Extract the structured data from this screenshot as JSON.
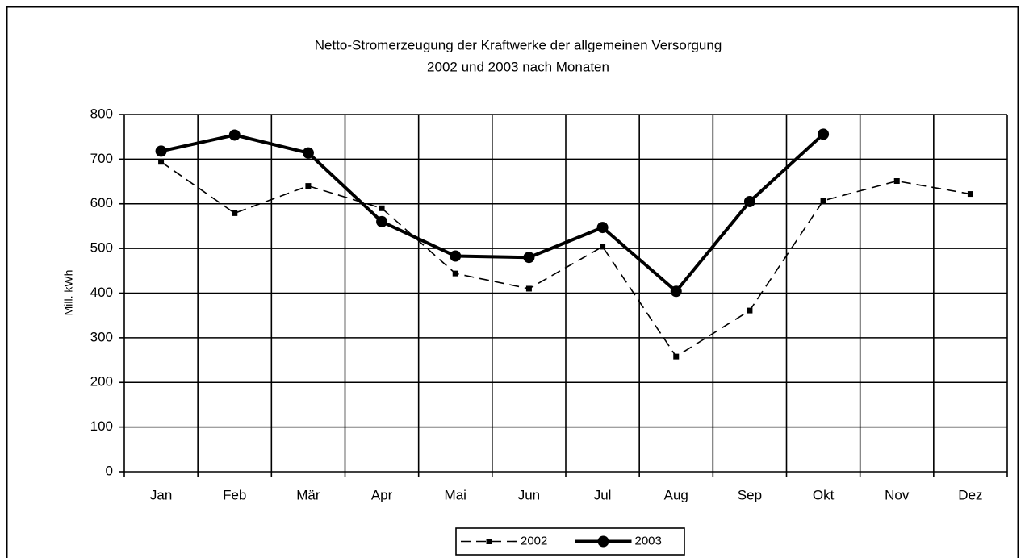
{
  "chart_data": {
    "type": "line",
    "title": [
      "Netto-Stromerzeugung der Kraftwerke der allgemeinen Versorgung",
      "2002 und 2003 nach Monaten"
    ],
    "y_label": "Mill. kWh",
    "categories": [
      "Jan",
      "Feb",
      "Mär",
      "Apr",
      "Mai",
      "Jun",
      "Jul",
      "Aug",
      "Sep",
      "Okt",
      "Nov",
      "Dez"
    ],
    "series": [
      {
        "name": "2002",
        "color": "#000000",
        "line_style": "dashed",
        "marker": "square",
        "values": [
          694,
          579,
          640,
          590,
          444,
          410,
          504,
          258,
          361,
          607,
          651,
          622
        ]
      },
      {
        "name": "2003",
        "color": "#000000",
        "line_style": "solid",
        "marker": "circle",
        "values": [
          718,
          754,
          714,
          560,
          483,
          480,
          547,
          404,
          605,
          756,
          null,
          null
        ]
      }
    ],
    "ylim": [
      0,
      800
    ],
    "yticks": [
      0,
      100,
      200,
      300,
      400,
      500,
      600,
      700,
      800
    ],
    "grid": true,
    "legend": "bottom"
  }
}
